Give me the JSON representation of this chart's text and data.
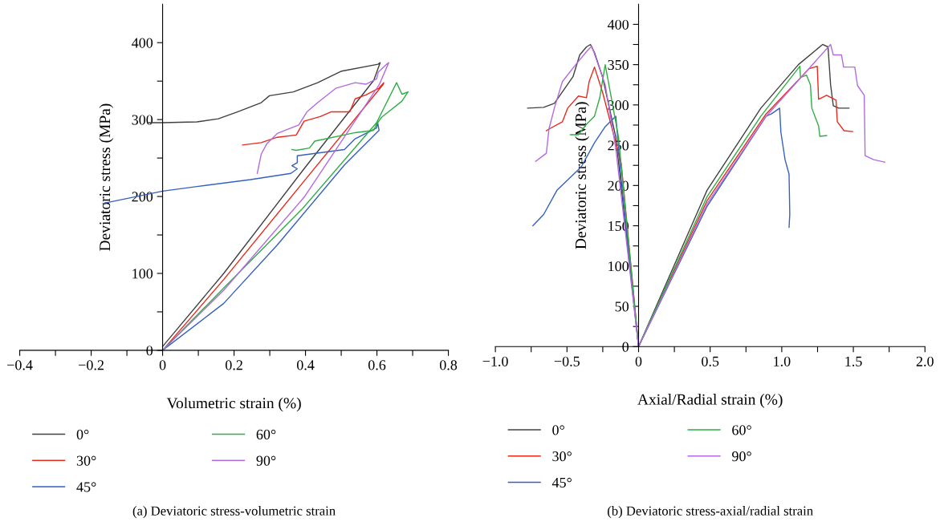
{
  "chart_data": [
    {
      "type": "line",
      "xlabel": "Volumetric strain (%)",
      "ylabel": "Deviatoric stress (MPa)",
      "xlim": [
        -0.4,
        0.8
      ],
      "ylim": [
        0,
        450
      ],
      "xticks": [
        {
          "value": -0.4,
          "label": "−0.4"
        },
        {
          "value": -0.3,
          "label": null
        },
        {
          "value": -0.2,
          "label": "−0.2"
        },
        {
          "value": -0.1,
          "label": null
        },
        0,
        {
          "value": 0.1,
          "label": null
        },
        0.2,
        {
          "value": 0.3,
          "label": null
        },
        0.4,
        {
          "value": 0.5,
          "label": null
        },
        0.6,
        {
          "value": 0.7,
          "label": null
        },
        0.8
      ],
      "yticks": [
        0,
        {
          "value": 50,
          "label": null
        },
        100,
        {
          "value": 150,
          "label": null
        },
        200,
        {
          "value": 250,
          "label": null
        },
        300,
        {
          "value": 350,
          "label": null
        },
        400
      ],
      "grid": false,
      "legend": "bottom",
      "marker": "none",
      "line_style": "solid",
      "annotations": [
        "(a) Deviatoric stress-volumetric strain"
      ],
      "series": [
        {
          "name": "0°",
          "color": "#404040",
          "x": [
            0,
            0.171,
            0.396,
            0.591,
            0.609,
            0.603,
            0.501,
            0.434,
            0.366,
            0.299,
            0.276,
            0.209,
            0.156,
            0.096,
            0,
            -0.04
          ],
          "values": [
            5,
            100,
            236,
            351,
            374,
            372,
            363,
            348,
            336,
            331,
            322,
            310,
            301,
            297,
            296,
            296
          ]
        },
        {
          "name": "30°",
          "color": "#e8291c",
          "x": [
            0,
            0.171,
            0.396,
            0.618,
            0.619,
            0.606,
            0.569,
            0.539,
            0.524,
            0.471,
            0.441,
            0.396,
            0.374,
            0.321,
            0.276,
            0.224
          ],
          "values": [
            0,
            92,
            220,
            346,
            348,
            341,
            332,
            327,
            310,
            310,
            304,
            298,
            280,
            277,
            270,
            267
          ]
        },
        {
          "name": "45°",
          "color": "#3560c0",
          "x": [
            0,
            0.171,
            0.321,
            0.509,
            0.606,
            0.602,
            0.599,
            0.539,
            0.509,
            0.377,
            0.377,
            0.362,
            0.377,
            0.359,
            0.246,
            0.096,
            0,
            -0.167
          ],
          "values": [
            0,
            61,
            137,
            241,
            286,
            296,
            289,
            275,
            261,
            253,
            244,
            240,
            236,
            230,
            222,
            213,
            207,
            191
          ]
        },
        {
          "name": "60°",
          "color": "#2eae44",
          "x": [
            0,
            0.171,
            0.393,
            0.599,
            0.655,
            0.67,
            0.687,
            0.67,
            0.613,
            0.599,
            0.591,
            0.539,
            0.426,
            0.411,
            0.374,
            0.362
          ],
          "values": [
            0,
            81,
            185,
            296,
            348,
            333,
            336,
            324,
            303,
            294,
            286,
            283,
            272,
            263,
            260,
            261
          ]
        },
        {
          "name": "90°",
          "color": "#b36ae0",
          "x": [
            0,
            0.171,
            0.396,
            0.606,
            0.633,
            0.625,
            0.604,
            0.599,
            0.569,
            0.539,
            0.486,
            0.434,
            0.404,
            0.381,
            0.321,
            0.291,
            0.276,
            0.265
          ],
          "values": [
            0,
            78,
            199,
            345,
            374,
            371,
            362,
            353,
            346,
            348,
            341,
            322,
            310,
            293,
            282,
            268,
            255,
            230
          ]
        }
      ]
    },
    {
      "type": "line",
      "xlabel": "Axial/Radial strain (%)",
      "ylabel": "Deviatoric stress (MPa)",
      "xlim": [
        -1.0,
        2.0
      ],
      "ylim": [
        0,
        425
      ],
      "xticks": [
        {
          "value": -1.0,
          "label": "−1.0"
        },
        {
          "value": -0.75,
          "label": null
        },
        {
          "value": -0.5,
          "label": "−0.5"
        },
        {
          "value": -0.25,
          "label": null
        },
        0,
        {
          "value": 0.25,
          "label": null
        },
        0.5,
        {
          "value": 0.75,
          "label": null
        },
        {
          "value": 1.0,
          "label": "1.0"
        },
        {
          "value": 1.25,
          "label": null
        },
        1.5,
        {
          "value": 1.75,
          "label": null
        },
        {
          "value": 2.0,
          "label": "2.0"
        }
      ],
      "yticks": [
        0,
        {
          "value": 25,
          "label": null
        },
        50,
        {
          "value": 75,
          "label": null
        },
        100,
        {
          "value": 125,
          "label": null
        },
        150,
        {
          "value": 175,
          "label": null
        },
        200,
        {
          "value": 225,
          "label": null
        },
        250,
        {
          "value": 275,
          "label": null
        },
        300,
        {
          "value": 325,
          "label": null
        },
        350,
        {
          "value": 375,
          "label": null
        },
        400
      ],
      "grid": false,
      "legend": "bottom",
      "marker": "none",
      "line_style": "solid",
      "annotations": [
        "(b) Deviatoric stress-axial/radial strain"
      ],
      "series": [
        {
          "name": "0°",
          "color": "#404040",
          "x": [
            -0.775,
            -0.663,
            -0.588,
            -0.458,
            -0.411,
            -0.364,
            -0.336,
            -0.308,
            -0.252,
            -0.159,
            0,
            0.478,
            0.854,
            1.116,
            1.285,
            1.323,
            1.341,
            1.36,
            1.398,
            1.469
          ],
          "values": [
            296,
            297,
            302,
            335,
            362,
            372,
            375,
            365,
            335,
            260,
            0,
            194,
            296,
            350,
            375,
            372,
            325,
            299,
            296,
            296
          ]
        },
        {
          "name": "30°",
          "color": "#e8291c",
          "x": [
            -0.644,
            -0.626,
            -0.532,
            -0.495,
            -0.42,
            -0.364,
            -0.345,
            -0.308,
            -0.252,
            -0.121,
            0,
            0.478,
            0.891,
            1.191,
            1.248,
            1.257,
            1.313,
            1.379,
            1.388,
            1.435,
            1.495
          ],
          "values": [
            268,
            270,
            279,
            296,
            311,
            309,
            329,
            347,
            316,
            227,
            0,
            181,
            289,
            345,
            348,
            307,
            312,
            306,
            279,
            268,
            267
          ]
        },
        {
          "name": "45°",
          "color": "#3560c0",
          "x": [
            -0.738,
            -0.663,
            -0.57,
            -0.401,
            -0.308,
            -0.233,
            -0.159,
            -0.121,
            0,
            0.478,
            0.891,
            0.929,
            0.985,
            0.994,
            1.023,
            1.051,
            1.056,
            1.051
          ],
          "values": [
            150,
            164,
            194,
            223,
            253,
            273,
            286,
            207,
            0,
            174,
            286,
            289,
            296,
            266,
            232,
            214,
            164,
            148
          ]
        },
        {
          "name": "60°",
          "color": "#2eae44",
          "x": [
            -0.476,
            -0.42,
            -0.364,
            -0.308,
            -0.271,
            -0.233,
            -0.14,
            0,
            0.478,
            0.854,
            1.126,
            1.131,
            1.173,
            1.2,
            1.21,
            1.257,
            1.266,
            1.313
          ],
          "values": [
            263,
            263,
            276,
            286,
            309,
            350,
            260,
            0,
            186,
            286,
            348,
            334,
            337,
            325,
            296,
            274,
            261,
            262
          ]
        },
        {
          "name": "90°",
          "color": "#b36ae0",
          "x": [
            -0.719,
            -0.644,
            -0.626,
            -0.588,
            -0.532,
            -0.439,
            -0.364,
            -0.327,
            -0.233,
            -0.159,
            0,
            0.478,
            0.891,
            1.341,
            1.36,
            1.417,
            1.432,
            1.51,
            1.529,
            1.576,
            1.582,
            1.642,
            1.72
          ],
          "values": [
            230,
            240,
            270,
            296,
            329,
            350,
            366,
            373,
            325,
            246,
            0,
            177,
            286,
            375,
            362,
            362,
            347,
            347,
            324,
            312,
            237,
            232,
            229
          ]
        }
      ]
    }
  ]
}
